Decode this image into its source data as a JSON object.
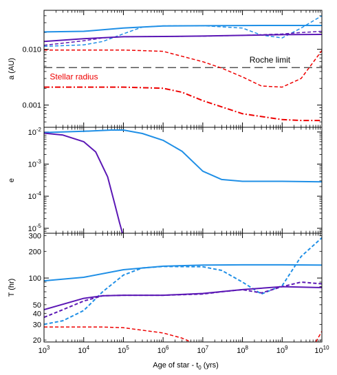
{
  "chart_data": [
    {
      "type": "line",
      "panel": "a",
      "ylabel": "a (AU)",
      "xlabel": "",
      "xscale": "log",
      "yscale": "log",
      "xlim": [
        1000,
        10000000000
      ],
      "ylim": [
        0.0004,
        0.05
      ],
      "yticks": [
        {
          "v": 0.001,
          "t": "0.001"
        },
        {
          "v": 0.01,
          "t": "0.010"
        }
      ],
      "annotations": [
        {
          "text": "Roche limit",
          "x": 150000000,
          "y": 0.0058,
          "color": "#000000",
          "anchor": "start"
        },
        {
          "text": "Stellar radius",
          "x": 1400,
          "y": 0.0029,
          "color": "#ee0000",
          "anchor": "start"
        }
      ],
      "series": [
        {
          "color": "#1f8fe6",
          "dash": "solid",
          "width": 2,
          "x": [
            1000,
            10000,
            100000,
            1000000,
            10000000,
            100000000,
            1000000000,
            10000000000
          ],
          "y": [
            0.0205,
            0.021,
            0.024,
            0.0262,
            0.0265,
            0.0267,
            0.0268,
            0.0268
          ]
        },
        {
          "color": "#1f8fe6",
          "dash": "dashed",
          "width": 1.5,
          "x": [
            1000,
            10000,
            30000,
            100000,
            300000,
            1000000,
            10000000,
            100000000,
            300000000,
            1000000000,
            3000000000,
            10000000000
          ],
          "y": [
            0.0113,
            0.012,
            0.0138,
            0.019,
            0.025,
            0.0263,
            0.0265,
            0.024,
            0.018,
            0.016,
            0.024,
            0.04
          ]
        },
        {
          "color": "#5b17b5",
          "dash": "solid",
          "width": 2,
          "x": [
            1000,
            10000,
            100000,
            1000000,
            10000000,
            100000000,
            1000000000,
            10000000000
          ],
          "y": [
            0.0138,
            0.0155,
            0.0168,
            0.017,
            0.0173,
            0.0178,
            0.0183,
            0.0185
          ]
        },
        {
          "color": "#5b17b5",
          "dash": "dashed",
          "width": 1.5,
          "x": [
            1000,
            10000,
            30000,
            100000,
            1000000,
            10000000,
            100000000,
            1000000000,
            3000000000,
            10000000000
          ],
          "y": [
            0.0118,
            0.0142,
            0.016,
            0.0168,
            0.017,
            0.0172,
            0.0178,
            0.0188,
            0.02,
            0.021
          ]
        },
        {
          "color": "#555555",
          "dash": "longdash",
          "width": 1.5,
          "x": [
            1000,
            10000000000
          ],
          "y": [
            0.0047,
            0.0047
          ]
        },
        {
          "color": "#ee0000",
          "dash": "dashed",
          "width": 1.5,
          "x": [
            1000,
            100000,
            1000000,
            3000000,
            10000000,
            30000000,
            100000000,
            300000000,
            1000000000,
            3000000000,
            10000000000
          ],
          "y": [
            0.0097,
            0.0097,
            0.0092,
            0.0075,
            0.006,
            0.0046,
            0.0032,
            0.0022,
            0.0021,
            0.003,
            0.0095
          ]
        },
        {
          "color": "#ee0000",
          "dash": "dashdot",
          "width": 2,
          "x": [
            1000,
            100000,
            1000000,
            3000000,
            10000000,
            100000000,
            1000000000,
            3000000000,
            10000000000
          ],
          "y": [
            0.0021,
            0.0021,
            0.002,
            0.0017,
            0.0012,
            0.0007,
            0.00055,
            0.00053,
            0.00053
          ]
        }
      ]
    },
    {
      "type": "line",
      "panel": "e",
      "ylabel": "e",
      "xlabel": "",
      "xscale": "log",
      "yscale": "log",
      "xlim": [
        1000,
        10000000000
      ],
      "ylim": [
        7e-06,
        0.014
      ],
      "yticks": [
        {
          "v": 1e-05,
          "t": "10",
          "sup": "-5"
        },
        {
          "v": 0.0001,
          "t": "10",
          "sup": "-4"
        },
        {
          "v": 0.001,
          "t": "10",
          "sup": "-3"
        },
        {
          "v": 0.01,
          "t": "10",
          "sup": "-2"
        }
      ],
      "series": [
        {
          "color": "#1f8fe6",
          "dash": "solid",
          "width": 2,
          "x": [
            1000,
            10000,
            50000,
            100000,
            300000,
            1000000,
            3000000,
            10000000,
            30000000,
            100000000,
            1000000000,
            10000000000
          ],
          "y": [
            0.0096,
            0.0105,
            0.0115,
            0.0115,
            0.009,
            0.0055,
            0.0025,
            0.0006,
            0.00033,
            0.00029,
            0.00029,
            0.00028
          ]
        },
        {
          "color": "#5b17b5",
          "dash": "solid",
          "width": 2,
          "x": [
            1000,
            3000,
            10000,
            20000,
            40000,
            60000,
            80000,
            95000
          ],
          "y": [
            0.0092,
            0.008,
            0.005,
            0.0024,
            0.0004,
            6e-05,
            1.5e-05,
            7e-06
          ]
        }
      ]
    },
    {
      "type": "line",
      "panel": "T",
      "ylabel": "T (hr)",
      "xlabel": "Age of star - t",
      "xlabel_sub": "0",
      "xlabel_tail": " (yrs)",
      "xscale": "log",
      "yscale": "log",
      "xlim": [
        1000,
        10000000000
      ],
      "ylim": [
        19,
        320
      ],
      "xticks": [
        {
          "v": 1000,
          "t": "10",
          "sup": "3"
        },
        {
          "v": 10000,
          "t": "10",
          "sup": "4"
        },
        {
          "v": 100000,
          "t": "10",
          "sup": "5"
        },
        {
          "v": 1000000,
          "t": "10",
          "sup": "6"
        },
        {
          "v": 10000000,
          "t": "10",
          "sup": "7"
        },
        {
          "v": 100000000,
          "t": "10",
          "sup": "8"
        },
        {
          "v": 1000000000,
          "t": "10",
          "sup": "9"
        },
        {
          "v": 10000000000,
          "t": "10",
          "sup": "10"
        }
      ],
      "yticks": [
        {
          "v": 20,
          "t": "20"
        },
        {
          "v": 30,
          "t": "30"
        },
        {
          "v": 40,
          "t": "40"
        },
        {
          "v": 50,
          "t": "50"
        },
        {
          "v": 100,
          "t": "100"
        },
        {
          "v": 200,
          "t": "200"
        },
        {
          "v": 300,
          "t": "300"
        }
      ],
      "series": [
        {
          "color": "#1f8fe6",
          "dash": "solid",
          "width": 2,
          "x": [
            1000,
            10000,
            100000,
            1000000,
            10000000,
            100000000,
            1000000000,
            10000000000
          ],
          "y": [
            93,
            102,
            124,
            136,
            140,
            141,
            141,
            140
          ]
        },
        {
          "color": "#1f8fe6",
          "dash": "dashed",
          "width": 2,
          "x": [
            1000,
            3000,
            10000,
            30000,
            100000,
            300000,
            1000000,
            10000000,
            30000000,
            100000000,
            300000000,
            1000000000,
            3000000000,
            10000000000
          ],
          "y": [
            30,
            33,
            43,
            70,
            108,
            130,
            135,
            134,
            122,
            90,
            66,
            82,
            175,
            285
          ]
        },
        {
          "color": "#5b17b5",
          "dash": "solid",
          "width": 2,
          "x": [
            1000,
            10000,
            30000,
            100000,
            1000000,
            10000000,
            100000000,
            1000000000,
            10000000000
          ],
          "y": [
            44,
            59,
            63,
            64,
            64,
            67,
            74,
            80,
            78
          ]
        },
        {
          "color": "#5b17b5",
          "dash": "dashed",
          "width": 2,
          "x": [
            1000,
            3000,
            10000,
            30000,
            100000,
            1000000,
            10000000,
            30000000,
            100000000,
            300000000,
            1000000000,
            3000000000,
            10000000000
          ],
          "y": [
            36,
            44,
            55,
            63,
            64,
            64,
            66,
            70,
            74,
            68,
            80,
            90,
            86
          ]
        },
        {
          "color": "#ee0000",
          "dash": "dashed",
          "width": 1.5,
          "x": [
            1000,
            30000,
            100000,
            1000000,
            3000000,
            5000000
          ],
          "y": [
            28,
            28,
            27.5,
            24,
            21,
            19
          ]
        },
        {
          "color": "#ee0000",
          "dash": "dashed",
          "width": 1.5,
          "x": [
            7000000000,
            10000000000
          ],
          "y": [
            19,
            25
          ]
        }
      ]
    }
  ]
}
